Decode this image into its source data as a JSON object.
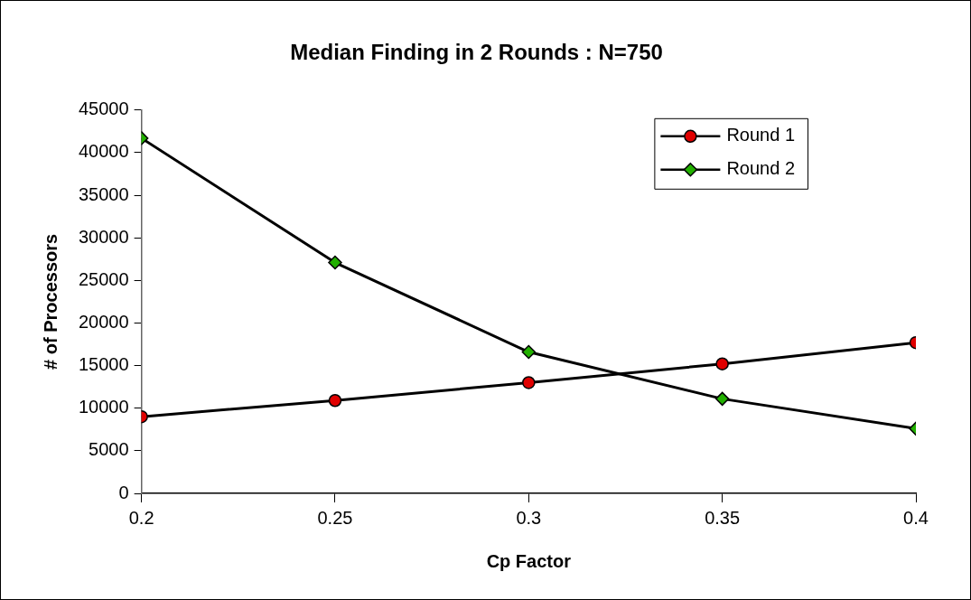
{
  "chart_data": {
    "type": "line",
    "title": "Median Finding in 2 Rounds : N=750",
    "xlabel": "Cp Factor",
    "ylabel": "# of Processors",
    "x": [
      0.2,
      0.25,
      0.3,
      0.35,
      0.4
    ],
    "series": [
      {
        "name": "Round 1",
        "color": "#e00000",
        "marker": "circle",
        "values": [
          9000,
          10900,
          13000,
          15200,
          17700
        ]
      },
      {
        "name": "Round 2",
        "color": "#22b000",
        "marker": "diamond",
        "values": [
          41700,
          27100,
          16600,
          11100,
          7600
        ]
      }
    ],
    "xlim": [
      0.2,
      0.4
    ],
    "xticks": [
      0.2,
      0.25,
      0.3,
      0.35,
      0.4
    ],
    "ylim": [
      0,
      45000
    ],
    "yticks": [
      0,
      5000,
      10000,
      15000,
      20000,
      25000,
      30000,
      35000,
      40000,
      45000
    ],
    "grid": false,
    "legend": "top right",
    "line_style": "solid"
  }
}
